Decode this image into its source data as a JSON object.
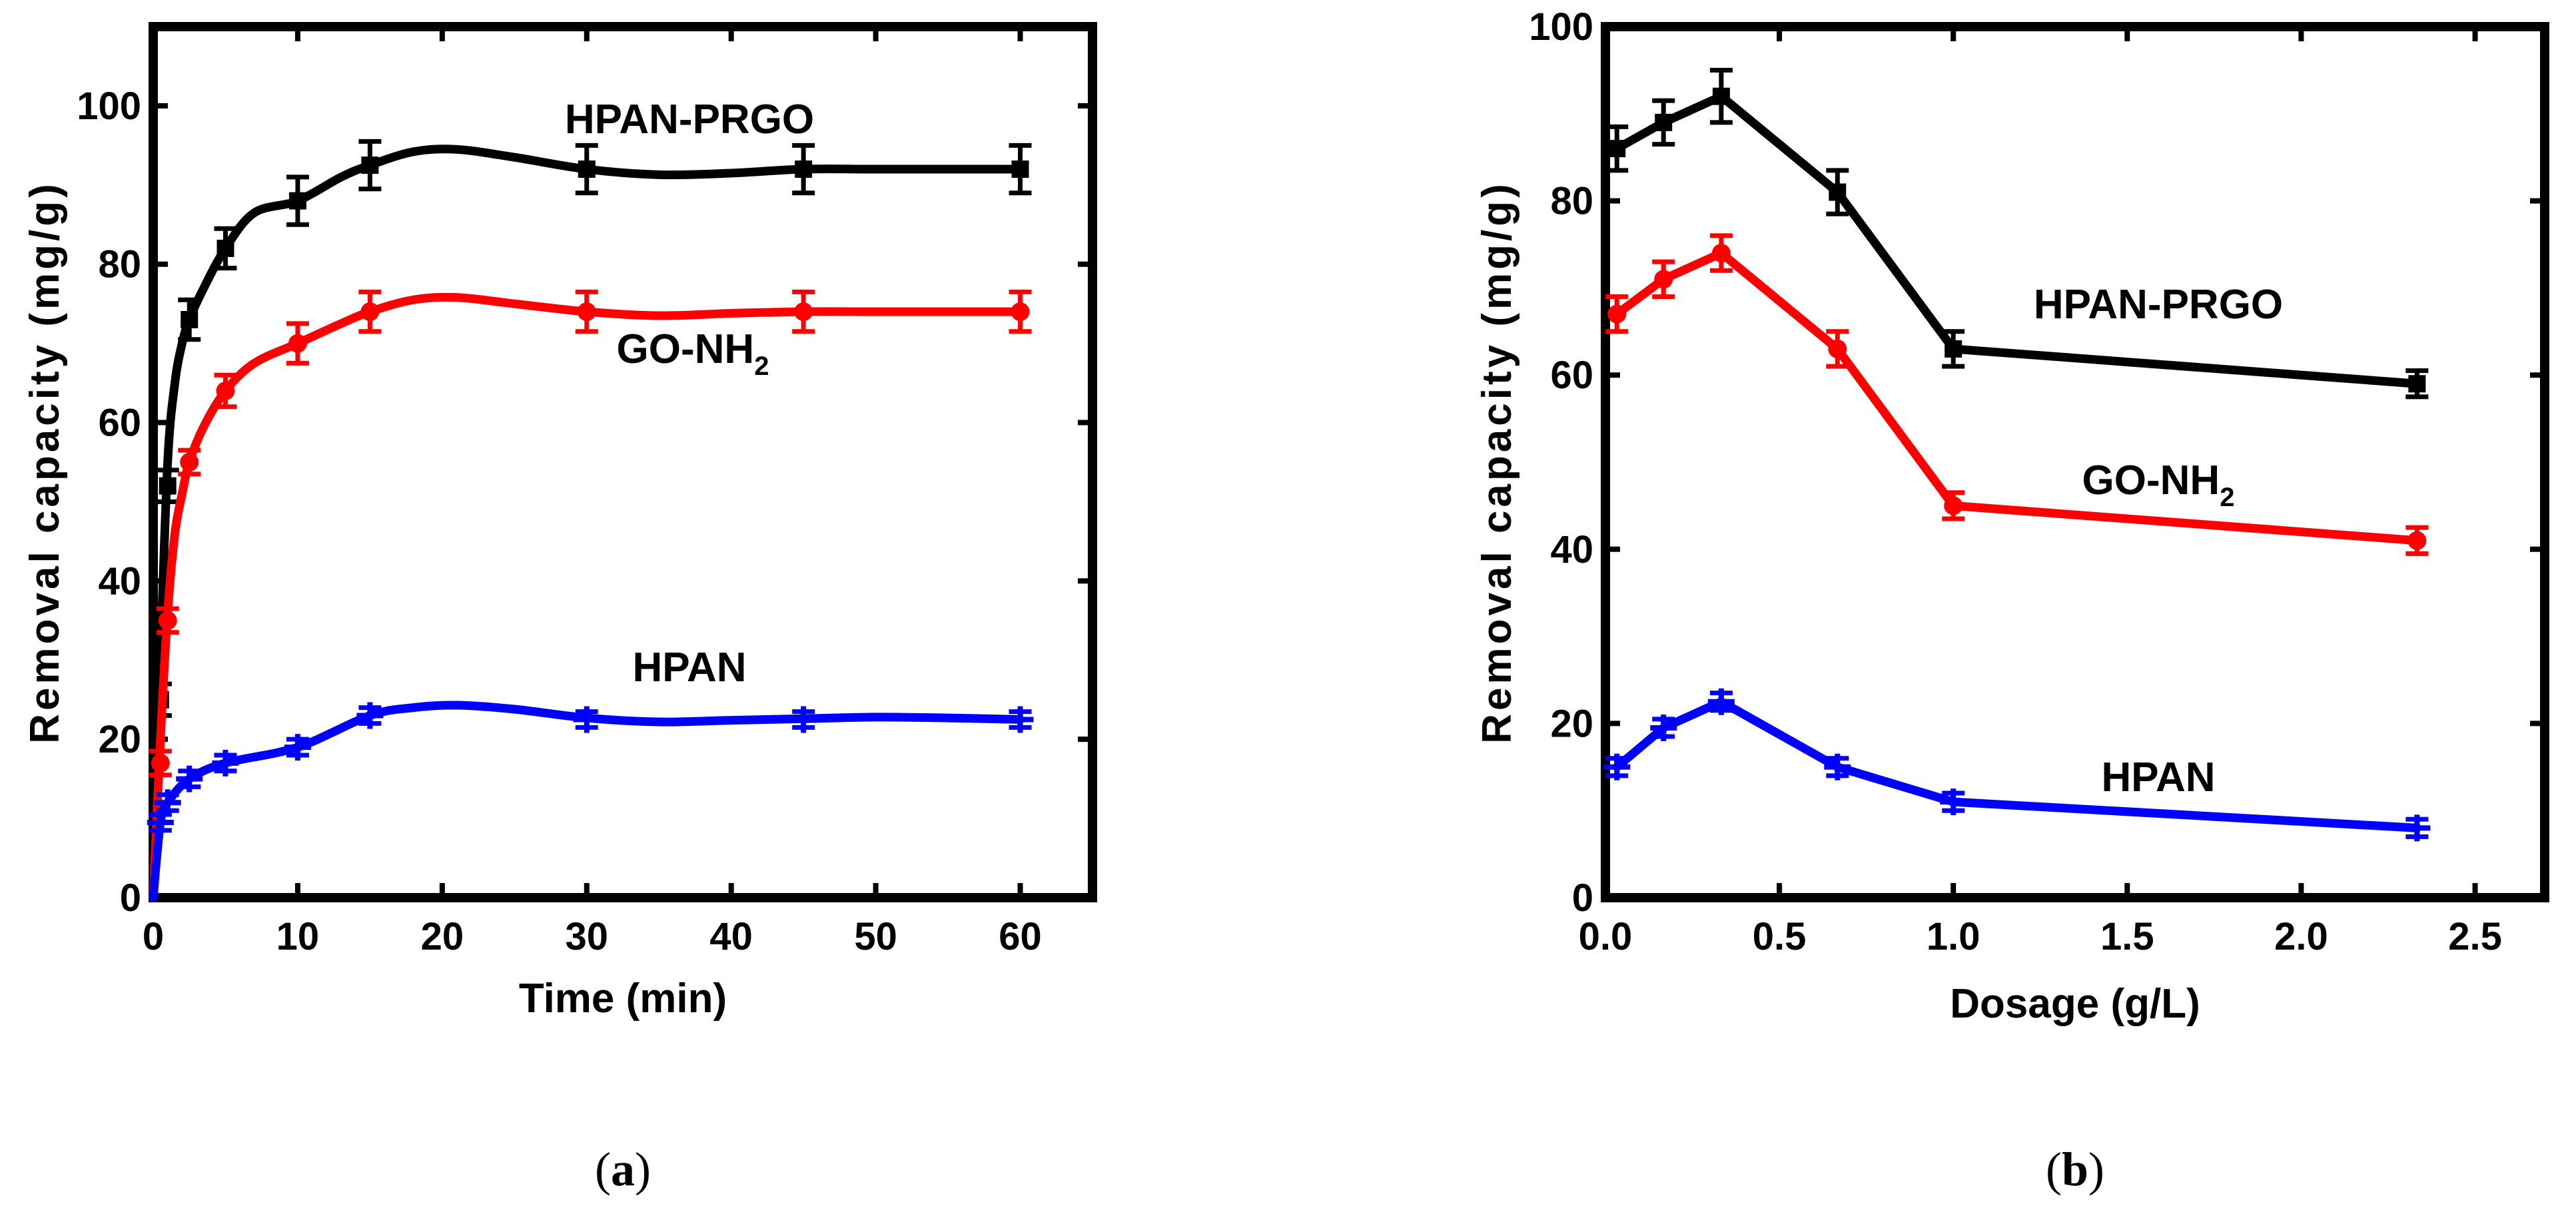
{
  "chart_data": [
    {
      "type": "line",
      "caption": {
        "open": "(",
        "letter": "a",
        "close": ")"
      },
      "xlabel": "Time (min)",
      "ylabel": "Removal capacity (mg/g)",
      "xlim": [
        0,
        65
      ],
      "ylim": [
        0,
        110
      ],
      "xticks": [
        "0",
        "10",
        "20",
        "30",
        "40",
        "50",
        "60"
      ],
      "yticks": [
        "0",
        "20",
        "40",
        "60",
        "80",
        "100"
      ],
      "grid": false,
      "series": [
        {
          "name": "HPAN-PRGO",
          "name_sub": "",
          "name_post": "",
          "color": "#000000",
          "marker": "square",
          "x": [
            0,
            0.5,
            1,
            2.5,
            5,
            10,
            15,
            30,
            45,
            60
          ],
          "y": [
            0,
            25,
            52,
            73,
            82,
            88,
            92.5,
            92,
            92,
            92
          ],
          "err": [
            0,
            2,
            2,
            2.5,
            2.5,
            3,
            3,
            3,
            3,
            3
          ],
          "smooth_x": [
            0,
            0.5,
            1,
            1.5,
            2,
            2.5,
            3.5,
            5,
            7,
            10,
            13,
            15,
            18,
            21,
            25,
            30,
            35,
            40,
            45,
            50,
            55,
            60
          ],
          "smooth_y": [
            0,
            30,
            55,
            65,
            70,
            73,
            77,
            82,
            86.5,
            88,
            91,
            92.5,
            94.2,
            94.5,
            93.5,
            92,
            91.3,
            91.5,
            92,
            92,
            92,
            92
          ]
        },
        {
          "name": "GO-NH",
          "name_sub": "2",
          "name_post": "",
          "color": "#ff0000",
          "marker": "circle",
          "x": [
            0,
            0.5,
            1,
            2.5,
            5,
            10,
            15,
            30,
            45,
            60
          ],
          "y": [
            0,
            17,
            35,
            55,
            64,
            70,
            74,
            74,
            74,
            74
          ],
          "err": [
            0,
            1.5,
            1.5,
            1.5,
            2,
            2.5,
            2.5,
            2.5,
            2.5,
            2.5
          ],
          "smooth_x": [
            0,
            0.5,
            1,
            1.5,
            2,
            2.5,
            3.5,
            5,
            7,
            10,
            13,
            15,
            18,
            21,
            25,
            30,
            35,
            40,
            45,
            50,
            55,
            60
          ],
          "smooth_y": [
            0,
            20,
            36,
            46,
            51,
            55,
            59.5,
            64,
            67.5,
            70,
            72.5,
            74,
            75.5,
            75.8,
            75,
            74,
            73.5,
            73.8,
            74,
            74,
            74,
            74
          ]
        },
        {
          "name": "HPAN",
          "name_sub": "",
          "name_post": "",
          "color": "#0000ff",
          "marker": "plus",
          "x": [
            0,
            0.5,
            1,
            2.5,
            5,
            10,
            15,
            30,
            45,
            60
          ],
          "y": [
            0,
            9.5,
            12,
            15,
            17,
            19,
            23,
            22.5,
            22.5,
            22.5
          ],
          "err": [
            0,
            1,
            1,
            1,
            1,
            1,
            1,
            1,
            1,
            1
          ],
          "smooth_x": [
            0,
            0.5,
            1,
            2.5,
            5,
            10,
            15,
            18,
            21,
            25,
            30,
            35,
            40,
            45,
            50,
            55,
            60
          ],
          "smooth_y": [
            0,
            9.5,
            12,
            15,
            17,
            19,
            23,
            24,
            24.3,
            23.8,
            22.7,
            22.2,
            22.4,
            22.6,
            22.8,
            22.7,
            22.5
          ]
        }
      ]
    },
    {
      "type": "line",
      "caption": {
        "open": "(",
        "letter": "b",
        "close": ")"
      },
      "xlabel": "Dosage (g/L)",
      "ylabel": "Removal capacity (mg/g)",
      "xlim": [
        0,
        2.7
      ],
      "ylim": [
        0,
        100
      ],
      "xticks": [
        "0.0",
        "0.5",
        "1.0",
        "1.5",
        "2.0",
        "2.5"
      ],
      "yticks": [
        "0",
        "20",
        "40",
        "60",
        "80",
        "100"
      ],
      "grid": false,
      "series": [
        {
          "name": "HPAN-PRGO",
          "name_sub": "",
          "name_post": "",
          "color": "#000000",
          "marker": "square",
          "x": [
            0.033,
            0.167,
            0.333,
            0.667,
            1.0,
            2.333
          ],
          "y": [
            86,
            89,
            92,
            81,
            63,
            59
          ],
          "err": [
            2.5,
            2.5,
            3,
            2.5,
            2,
            1.5
          ]
        },
        {
          "name": "GO-NH",
          "name_sub": "2",
          "name_post": "",
          "color": "#ff0000",
          "marker": "circle",
          "x": [
            0.033,
            0.167,
            0.333,
            0.667,
            1.0,
            2.333
          ],
          "y": [
            67,
            71,
            74,
            63,
            45,
            41
          ],
          "err": [
            2,
            2,
            2,
            2,
            1.5,
            1.5
          ]
        },
        {
          "name": "HPAN",
          "name_sub": "",
          "name_post": "",
          "color": "#0000ff",
          "marker": "plus",
          "x": [
            0.033,
            0.167,
            0.333,
            0.667,
            1.0,
            2.333
          ],
          "y": [
            15,
            19.5,
            22.5,
            15,
            11,
            8
          ],
          "err": [
            1,
            1,
            1,
            1,
            1,
            1
          ]
        }
      ]
    }
  ]
}
